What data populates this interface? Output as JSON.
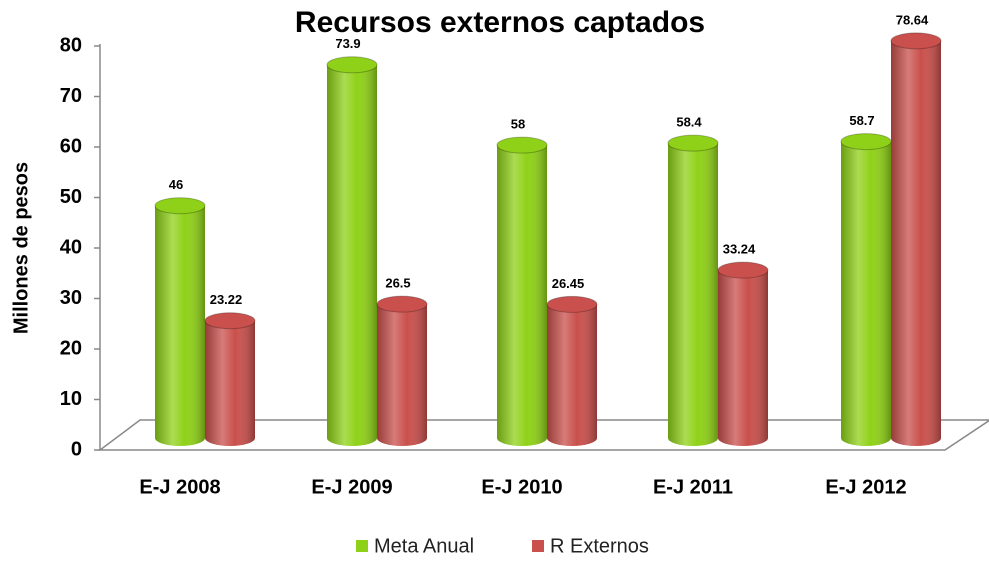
{
  "chart_data": {
    "type": "bar3d",
    "title": "Recursos externos captados",
    "y_label": "Millones de pesos",
    "categories": [
      "E-J 2008",
      "E-J 2009",
      "E-J 2010",
      "E-J 2011",
      "E-J 2012"
    ],
    "series": [
      {
        "name": "Meta Anual",
        "color": "#8fd118",
        "values": [
          46,
          73.9,
          58,
          58.4,
          58.7
        ]
      },
      {
        "name": "R Externos",
        "color": "#c9504c",
        "values": [
          23.22,
          26.5,
          26.45,
          33.24,
          78.64
        ]
      }
    ],
    "ylim": [
      0,
      80
    ],
    "yticks": [
      0,
      10,
      20,
      30,
      40,
      50,
      60,
      70,
      80
    ],
    "legend": "bottom"
  }
}
